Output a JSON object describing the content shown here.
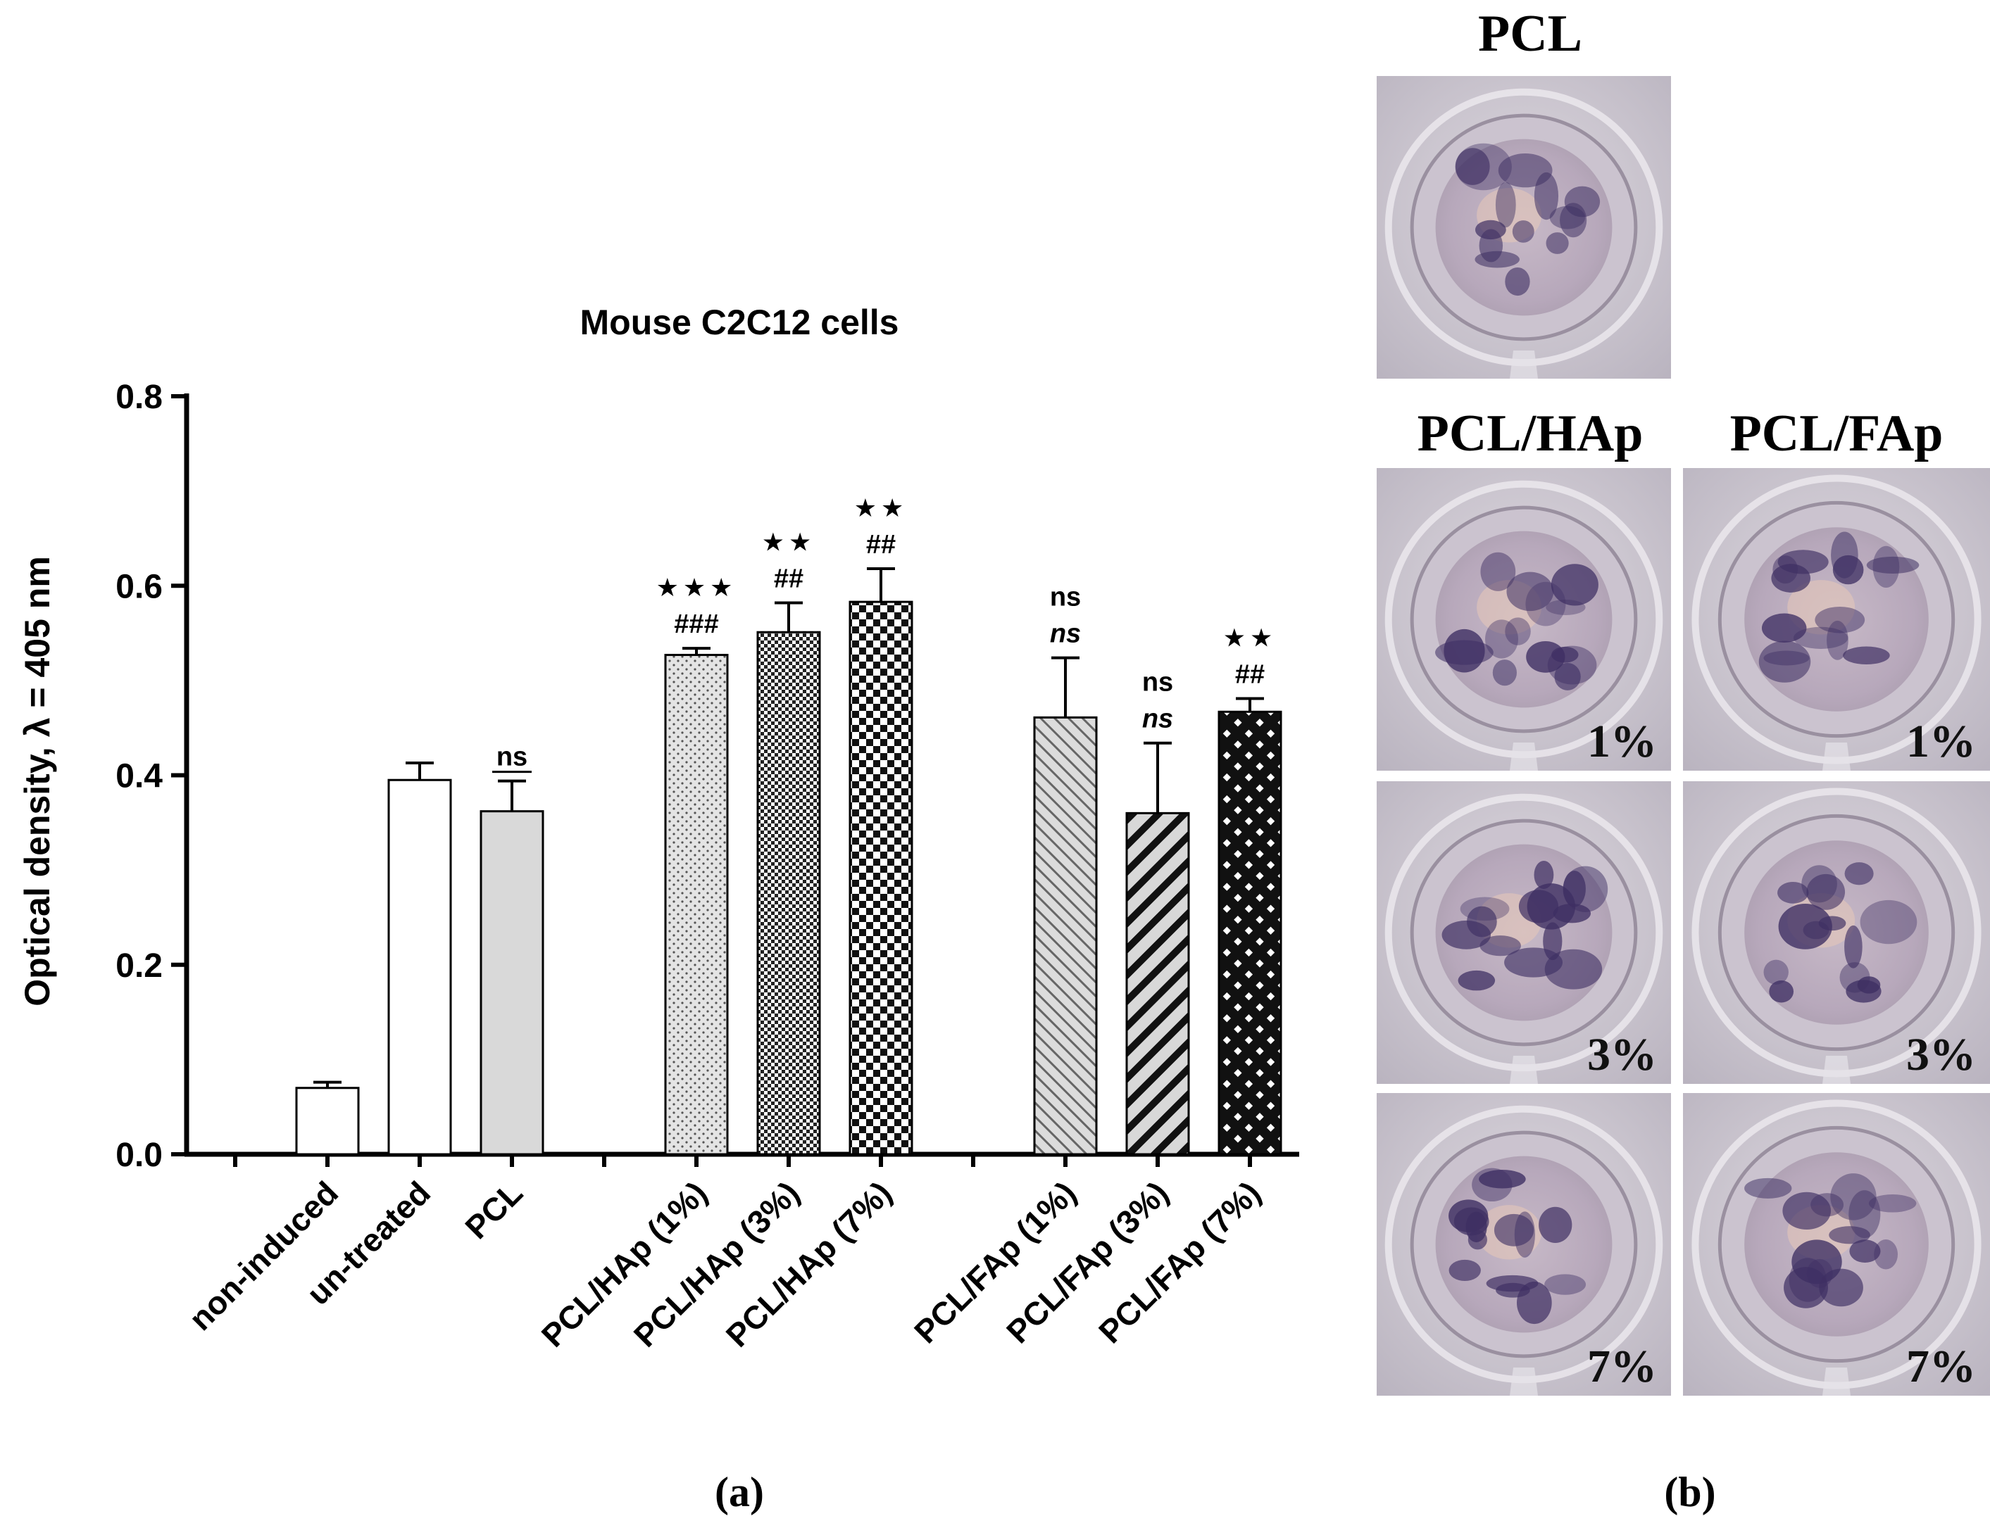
{
  "chart_data": {
    "type": "bar",
    "title": "Mouse C2C12 cells",
    "ylabel": "Optical density, λ = 405 nm",
    "xlabel": "",
    "ylim": [
      0,
      0.8
    ],
    "yticks": [
      "0.0",
      "0.2",
      "0.4",
      "0.6",
      "0.8"
    ],
    "grid": false,
    "categories": [
      "non-induced",
      "un-treated",
      "PCL",
      "PCL/HAp (1%)",
      "PCL/HAp (3%)",
      "PCL/HAp (7%)",
      "PCL/FAp (1%)",
      "PCL/FAp (3%)",
      "PCL/FAp (7%)"
    ],
    "values": [
      0.07,
      0.395,
      0.362,
      0.527,
      0.551,
      0.583,
      0.461,
      0.36,
      0.467
    ],
    "errors": [
      0.006,
      0.018,
      0.032,
      0.007,
      0.031,
      0.035,
      0.063,
      0.074,
      0.014
    ],
    "patterns": [
      "white",
      "white",
      "gray",
      "dots",
      "finecheck",
      "check",
      "hatch",
      "diagonal",
      "crosshatch"
    ],
    "annotations": [
      null,
      null,
      {
        "line1": "ns",
        "underline": true
      },
      {
        "stars": "★★★",
        "line2": "###"
      },
      {
        "stars": "★★",
        "line2": "##"
      },
      {
        "stars": "★★",
        "line2": "##"
      },
      {
        "line1": "ns",
        "line2": "ns",
        "line2_italic": true
      },
      {
        "line1": "ns",
        "line2": "ns",
        "line2_italic": true
      },
      {
        "stars": "★★",
        "line2": "##"
      }
    ]
  },
  "photo_panel": {
    "top_title": "PCL",
    "col_titles": [
      "PCL/HAp",
      "PCL/FAp"
    ],
    "row_labels": [
      "1%",
      "3%",
      "7%"
    ]
  },
  "panel_labels": {
    "a": "(a)",
    "b": "(b)"
  }
}
